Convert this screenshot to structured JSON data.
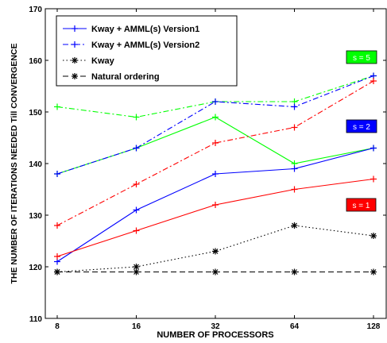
{
  "chart_data": {
    "type": "line",
    "xlabel": "NUMBER OF PROCESSORS",
    "ylabel": "THE NUMBER OF ITERATIONS NEEDED Till CONVERGENCE",
    "categories": [
      "8",
      "16",
      "32",
      "64",
      "128"
    ],
    "ylim": [
      110,
      170
    ],
    "yticks": [
      110,
      120,
      130,
      140,
      150,
      160,
      170
    ],
    "grid": false,
    "legend_position": "top-left",
    "legend": [
      {
        "label": "Kway + AMML(s) Version1",
        "style": "solid",
        "color": "#0000ff"
      },
      {
        "label": "Kway + AMML(s) Version2",
        "style": "dashdot",
        "color": "#0000ff"
      },
      {
        "label": "Kway",
        "style": "dotted",
        "color": "#000000"
      },
      {
        "label": "Natural ordering",
        "style": "dashed",
        "color": "#000000"
      }
    ],
    "annotations": [
      {
        "text": "s = 5",
        "color": "#00ff00",
        "text_color": "#ffffff"
      },
      {
        "text": "s = 2",
        "color": "#0000ff",
        "text_color": "#ffffff"
      },
      {
        "text": "s = 1",
        "color": "#ff0000",
        "text_color": "#ffffff"
      }
    ],
    "series": [
      {
        "s": "5",
        "version": "Version1",
        "color": "#00ff00",
        "style": "solid",
        "values": [
          138,
          143,
          149,
          140,
          143
        ]
      },
      {
        "s": "5",
        "version": "Version2",
        "color": "#00ff00",
        "style": "dashdot",
        "values": [
          151,
          149,
          152,
          152,
          157
        ]
      },
      {
        "s": "2",
        "version": "Version1",
        "color": "#0000ff",
        "style": "solid",
        "values": [
          121,
          131,
          138,
          139,
          143
        ]
      },
      {
        "s": "2",
        "version": "Version2",
        "color": "#0000ff",
        "style": "dashdot",
        "values": [
          138,
          143,
          152,
          151,
          157
        ]
      },
      {
        "s": "1",
        "version": "Version1",
        "color": "#ff0000",
        "style": "solid",
        "values": [
          122,
          127,
          132,
          135,
          137
        ]
      },
      {
        "s": "1",
        "version": "Version2",
        "color": "#ff0000",
        "style": "dashdot",
        "values": [
          128,
          136,
          144,
          147,
          156
        ]
      },
      {
        "version": "Kway",
        "color": "#000000",
        "style": "dotted",
        "values": [
          119,
          120,
          123,
          128,
          126
        ]
      },
      {
        "version": "Natural ordering",
        "color": "#000000",
        "style": "dashed",
        "values": [
          119,
          119,
          119,
          119,
          119
        ]
      }
    ]
  }
}
